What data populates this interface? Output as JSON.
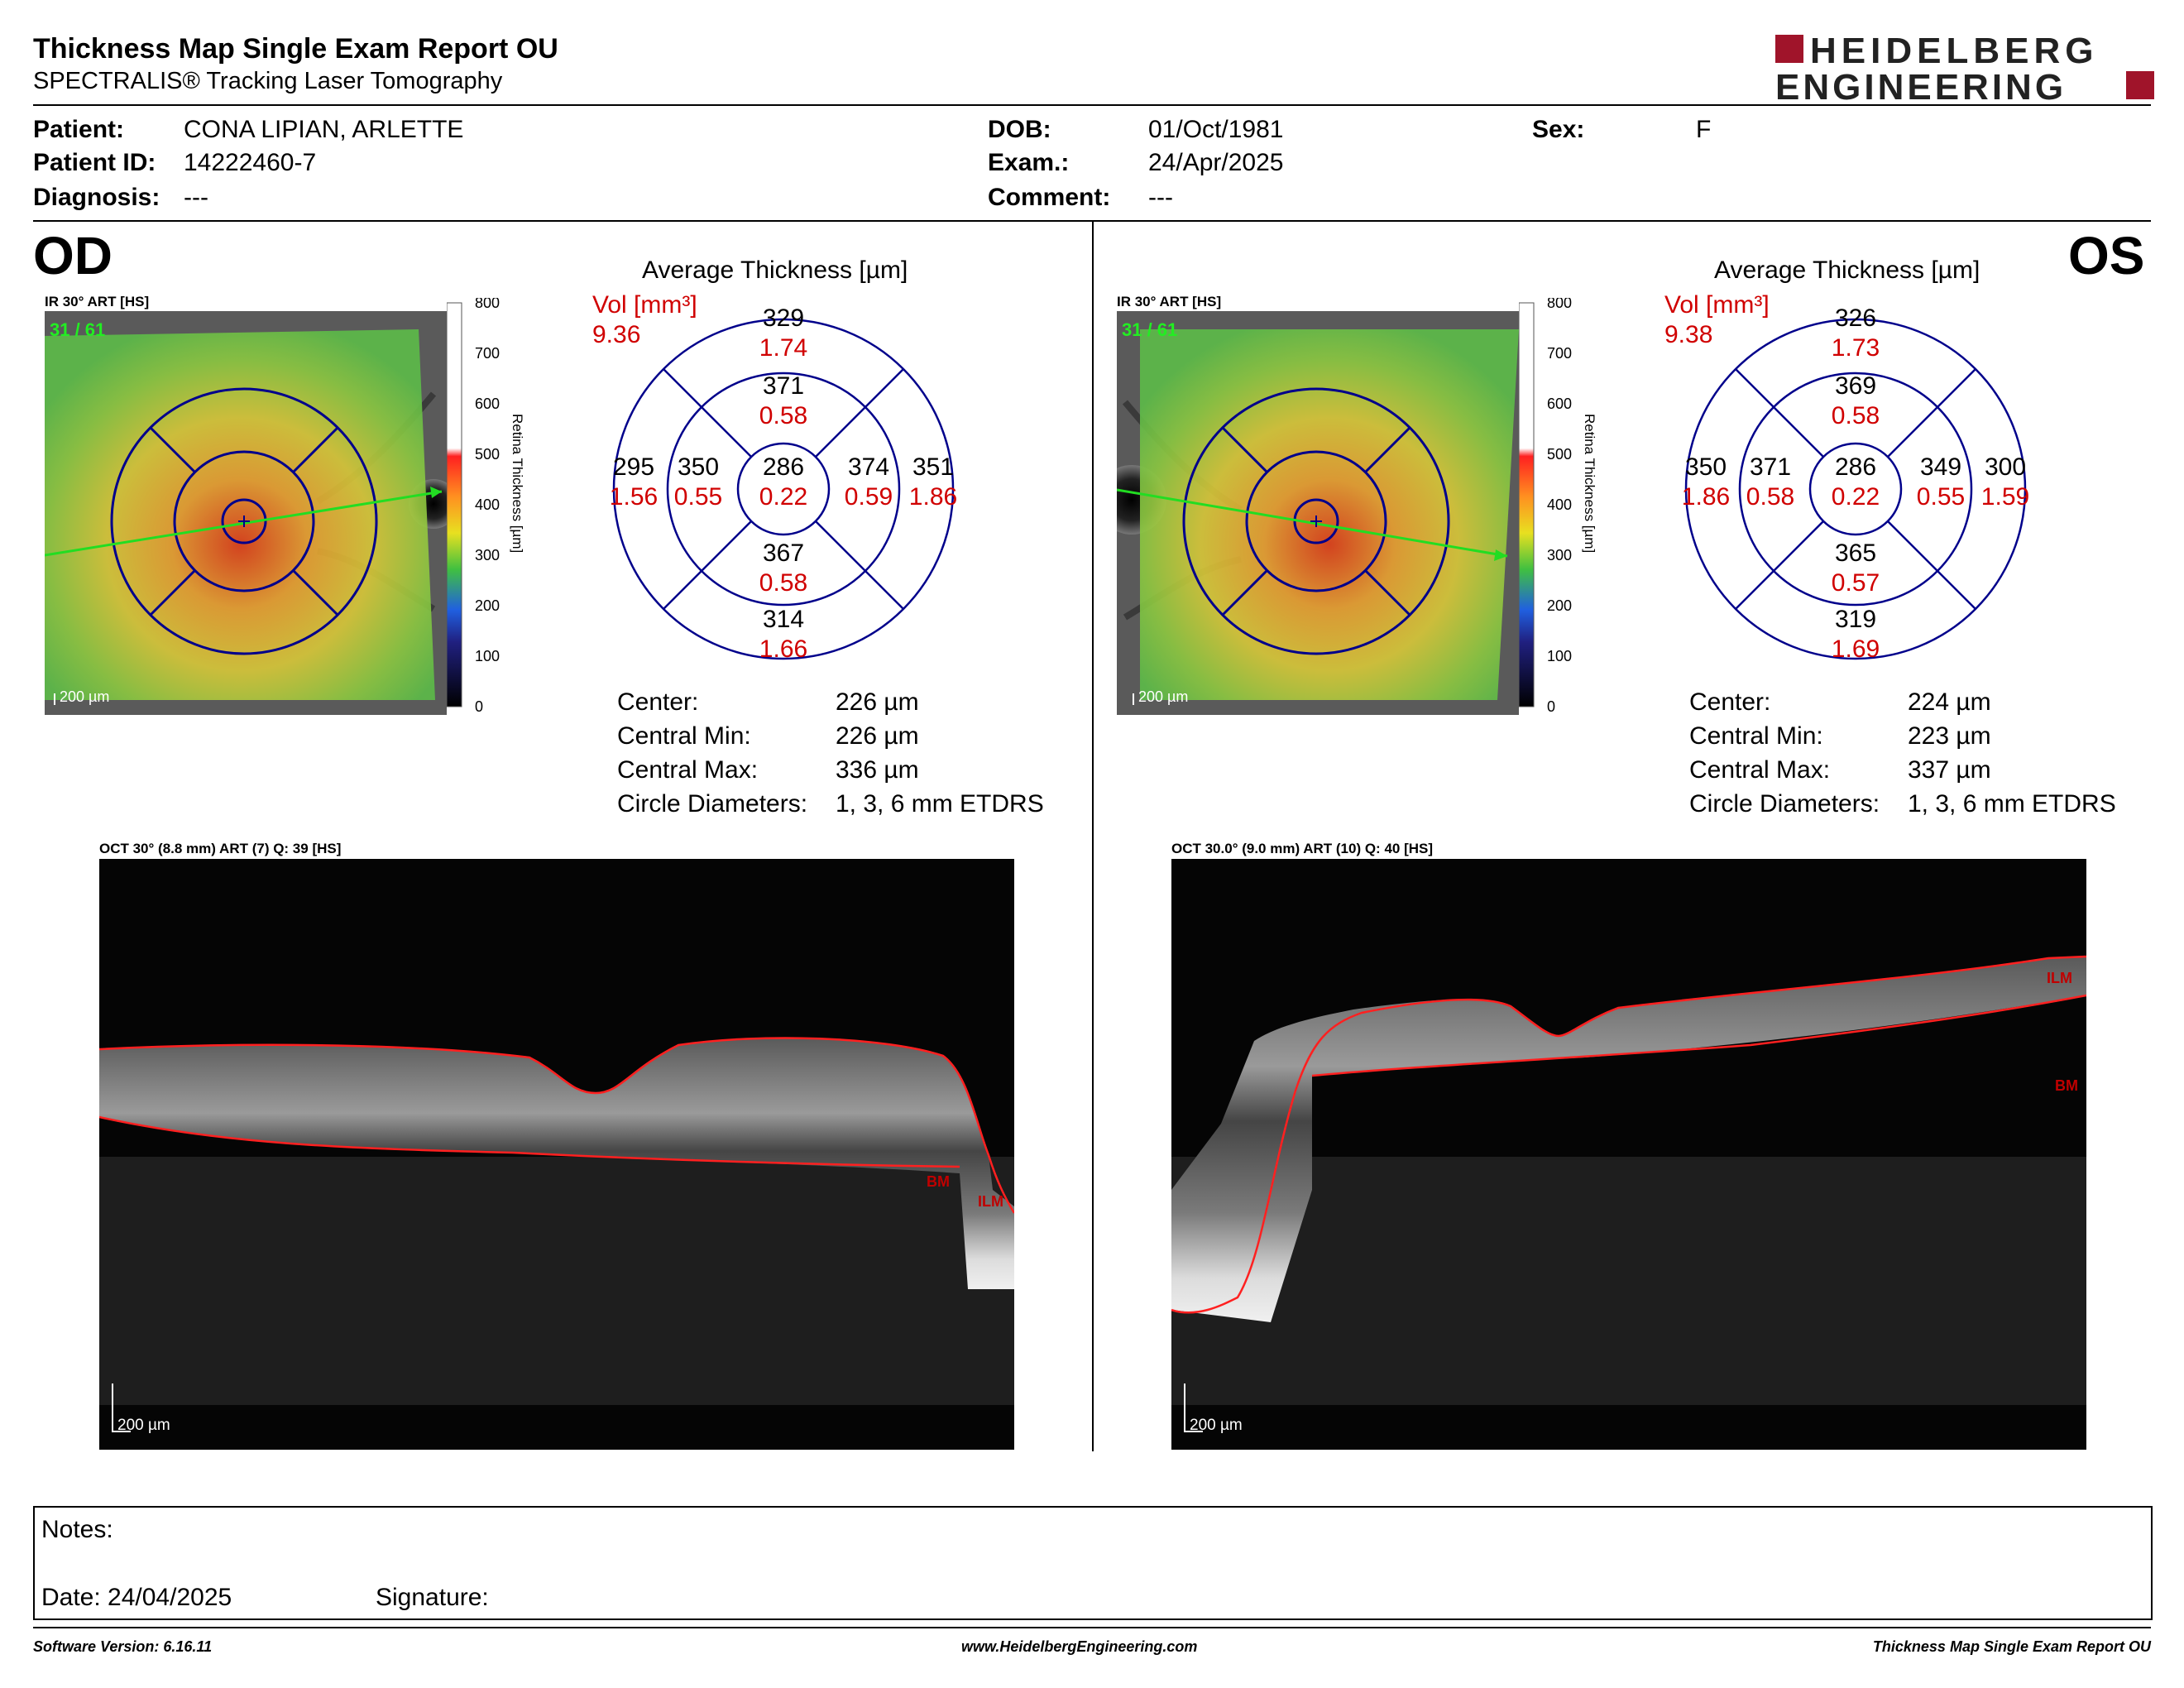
{
  "header": {
    "title": "Thickness Map Single Exam Report OU",
    "subtitle": "SPECTRALIS® Tracking Laser Tomography",
    "logo_line1": "HEIDELBERG",
    "logo_line2": "ENGINEERING"
  },
  "patient": {
    "patient_label": "Patient:",
    "patient_value": "CONA LIPIAN, ARLETTE",
    "id_label": "Patient ID:",
    "id_value": "14222460-7",
    "diagnosis_label": "Diagnosis:",
    "diagnosis_value": "---",
    "dob_label": "DOB:",
    "dob_value": "01/Oct/1981",
    "exam_label": "Exam.:",
    "exam_value": "24/Apr/2025",
    "comment_label": "Comment:",
    "comment_value": "---",
    "sex_label": "Sex:",
    "sex_value": "F"
  },
  "scale": {
    "title": "Retina Thickness [µm]",
    "ticks": [
      "800",
      "700",
      "600",
      "500",
      "400",
      "300",
      "200",
      "100",
      "0"
    ]
  },
  "od": {
    "eye": "OD",
    "ir_caption": "IR 30° ART [HS]",
    "frame_count": "31 / 61",
    "map_scale": "200 µm",
    "avg_title": "Average Thickness [µm]",
    "vol_label": "Vol [mm³]",
    "vol_value": "9.36",
    "sectors": {
      "outer_top": "329",
      "outer_top_vol": "1.74",
      "inner_top": "371",
      "inner_top_vol": "0.58",
      "outer_left": "295",
      "outer_left_vol": "1.56",
      "inner_left": "350",
      "inner_left_vol": "0.55",
      "center": "286",
      "center_vol": "0.22",
      "inner_right": "374",
      "inner_right_vol": "0.59",
      "outer_right": "351",
      "outer_right_vol": "1.86",
      "inner_bottom": "367",
      "inner_bottom_vol": "0.58",
      "outer_bottom": "314",
      "outer_bottom_vol": "1.66"
    },
    "stats": {
      "center_label": "Center:",
      "center_value": "226 µm",
      "min_label": "Central Min:",
      "min_value": "226 µm",
      "max_label": "Central Max:",
      "max_value": "336 µm",
      "diam_label": "Circle Diameters:",
      "diam_value": "1, 3, 6 mm ETDRS"
    },
    "oct_caption": "OCT 30° (8.8 mm) ART (7) Q: 39 [HS]",
    "oct_scale": "200 µm",
    "oct_label_a": "BM",
    "oct_label_b": "ILM"
  },
  "os": {
    "eye": "OS",
    "ir_caption": "IR 30° ART [HS]",
    "frame_count": "31 / 61",
    "map_scale": "200 µm",
    "avg_title": "Average Thickness [µm]",
    "vol_label": "Vol [mm³]",
    "vol_value": "9.38",
    "sectors": {
      "outer_top": "326",
      "outer_top_vol": "1.73",
      "inner_top": "369",
      "inner_top_vol": "0.58",
      "outer_left": "350",
      "outer_left_vol": "1.86",
      "inner_left": "371",
      "inner_left_vol": "0.58",
      "center": "286",
      "center_vol": "0.22",
      "inner_right": "349",
      "inner_right_vol": "0.55",
      "outer_right": "300",
      "outer_right_vol": "1.59",
      "inner_bottom": "365",
      "inner_bottom_vol": "0.57",
      "outer_bottom": "319",
      "outer_bottom_vol": "1.69"
    },
    "stats": {
      "center_label": "Center:",
      "center_value": "224 µm",
      "min_label": "Central Min:",
      "min_value": "223 µm",
      "max_label": "Central Max:",
      "max_value": "337 µm",
      "diam_label": "Circle Diameters:",
      "diam_value": "1, 3, 6 mm ETDRS"
    },
    "oct_caption": "OCT 30.0° (9.0 mm) ART (10) Q: 40 [HS]",
    "oct_scale": "200 µm",
    "oct_label_a": "ILM",
    "oct_label_b": "BM"
  },
  "notes": {
    "notes_label": "Notes:",
    "date_label": "Date: 24/04/2025",
    "signature_label": "Signature:"
  },
  "footer": {
    "software": "Software Version: 6.16.11",
    "website": "www.HeidelbergEngineering.com",
    "report": "Thickness Map Single Exam Report OU"
  },
  "colors": {
    "accent_red": "#d00000",
    "grid_blue": "#00008b",
    "logo_red": "#a0142a",
    "segmentation_red": "#ff2020"
  }
}
